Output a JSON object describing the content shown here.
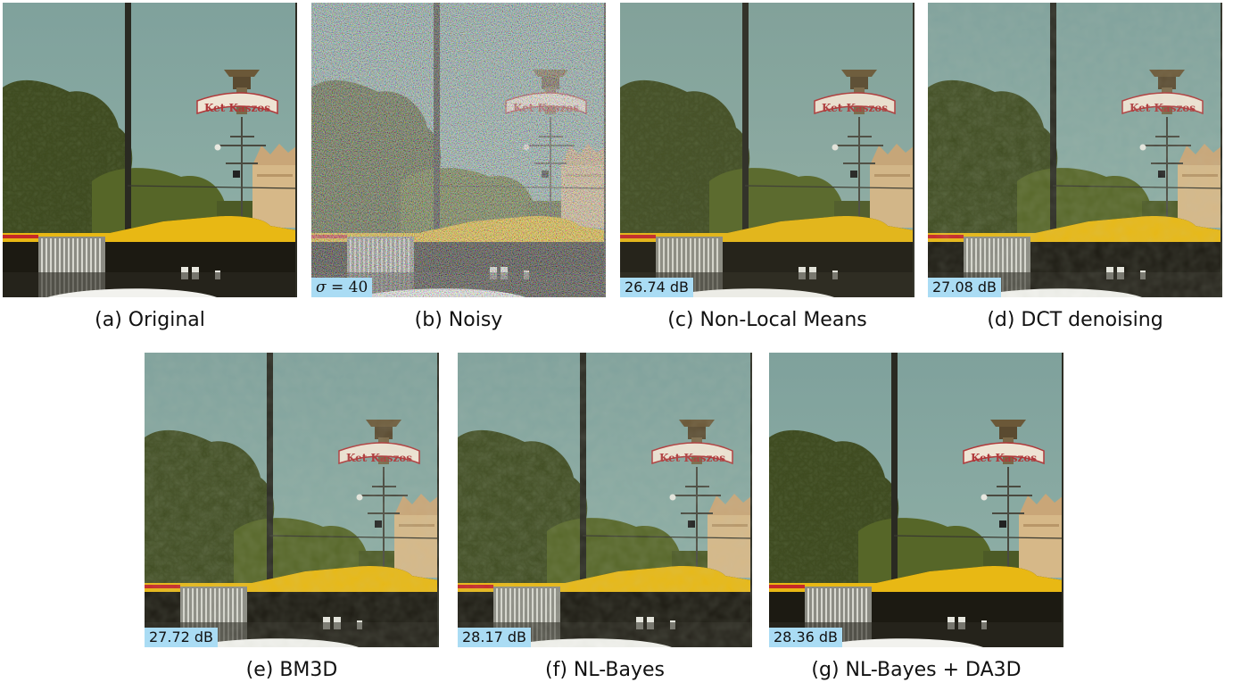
{
  "panels": [
    {
      "id": "a",
      "caption": "(a) Original",
      "badge": "",
      "noise": "none"
    },
    {
      "id": "b",
      "caption": "(b) Noisy",
      "badge_symbol": "σ",
      "badge_rest": " = 40",
      "noise": "heavy"
    },
    {
      "id": "c",
      "caption": "(c) Non-Local Means",
      "badge": "26.74 dB",
      "noise": "smooth"
    },
    {
      "id": "d",
      "caption": "(d) DCT denoising",
      "badge": "27.08 dB",
      "noise": "light"
    },
    {
      "id": "e",
      "caption": "(e) BM3D",
      "badge": "27.72 dB",
      "noise": "light"
    },
    {
      "id": "f",
      "caption": "(f) NL-Bayes",
      "badge": "28.17 dB",
      "noise": "light"
    },
    {
      "id": "g",
      "caption": "(g) NL-Bayes + DA3D",
      "badge": "28.36 dB",
      "noise": "none"
    }
  ],
  "scene": {
    "sky_color": "#84a8a2",
    "tree_color": "#3e4a20",
    "bus_yellow": "#e8b814",
    "bus_dark": "#1c1a12",
    "building_color": "#d6b888",
    "sign_color": "#b0383a",
    "sign_text": "Ket Kaszos"
  }
}
